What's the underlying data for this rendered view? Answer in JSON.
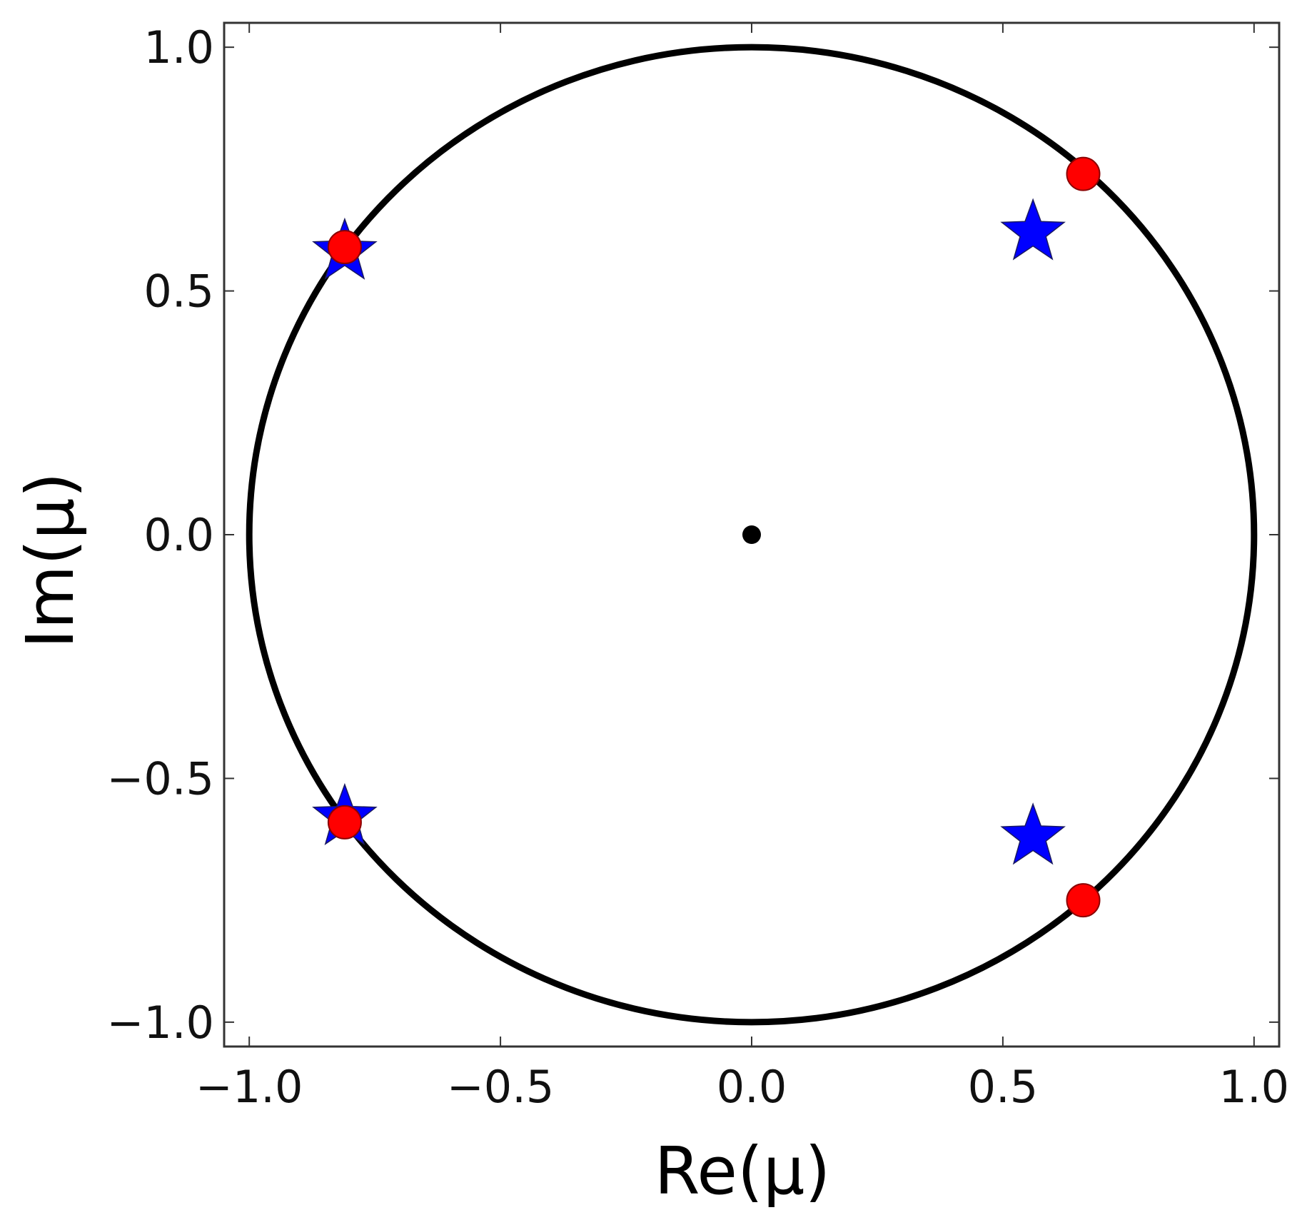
{
  "chart_data": {
    "type": "scatter",
    "title": "",
    "xlabel": "Re(μ)",
    "ylabel": "Im(μ)",
    "xlim": [
      -1.05,
      1.05
    ],
    "ylim": [
      -1.05,
      1.05
    ],
    "xticks": [
      -1.0,
      -0.5,
      0.0,
      0.5,
      1.0
    ],
    "yticks": [
      -1.0,
      -0.5,
      0.0,
      0.5,
      1.0
    ],
    "xtick_labels": [
      "−1.0",
      "−0.5",
      "0.0",
      "0.5",
      "1.0"
    ],
    "ytick_labels": [
      "−1.0",
      "−0.5",
      "0.0",
      "0.5",
      "1.0"
    ],
    "grid": false,
    "legend": "none",
    "unit_circle": {
      "radius": 1.0,
      "color": "#000000"
    },
    "series": [
      {
        "marker": "star",
        "color": "#0000ff",
        "points": [
          {
            "x": -0.81,
            "y": 0.58
          },
          {
            "x": -0.81,
            "y": -0.58
          },
          {
            "x": 0.56,
            "y": 0.62
          },
          {
            "x": 0.56,
            "y": -0.62
          }
        ]
      },
      {
        "marker": "circle",
        "color": "#ff0000",
        "points": [
          {
            "x": -0.81,
            "y": 0.59
          },
          {
            "x": -0.81,
            "y": -0.59
          },
          {
            "x": 0.66,
            "y": 0.74
          },
          {
            "x": 0.66,
            "y": -0.75
          }
        ]
      },
      {
        "marker": "dot",
        "color": "#000000",
        "points": [
          {
            "x": 0.0,
            "y": 0.0
          }
        ]
      }
    ]
  }
}
